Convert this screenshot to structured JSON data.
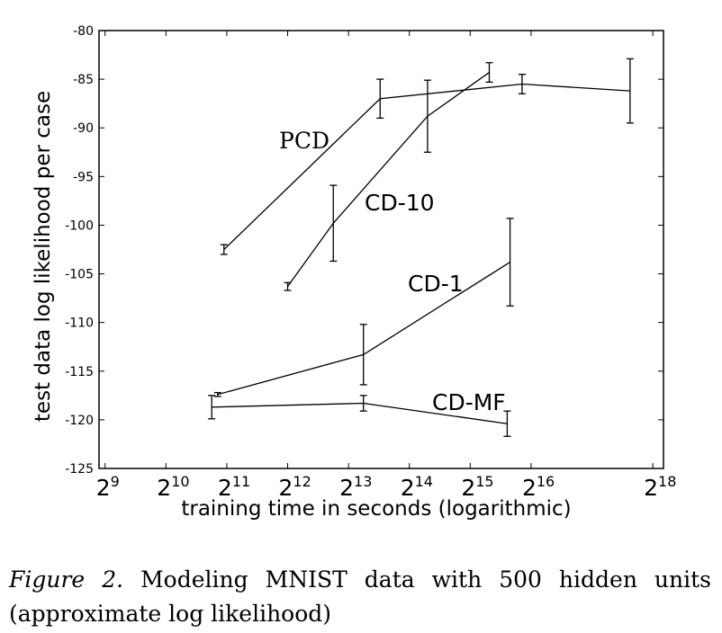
{
  "chart_data": {
    "type": "line",
    "xscale": "log2",
    "xlabel": "training time in seconds (logarithmic)",
    "ylabel": "test data log likelihood per case",
    "xlim": [
      478,
      296000
    ],
    "ylim": [
      -125,
      -80
    ],
    "xticks": [
      {
        "base": "2",
        "exp": "9",
        "value": 512
      },
      {
        "base": "2",
        "exp": "10",
        "value": 1024
      },
      {
        "base": "2",
        "exp": "11",
        "value": 2048
      },
      {
        "base": "2",
        "exp": "12",
        "value": 4096
      },
      {
        "base": "2",
        "exp": "13",
        "value": 8192
      },
      {
        "base": "2",
        "exp": "14",
        "value": 16384
      },
      {
        "base": "2",
        "exp": "15",
        "value": 32768
      },
      {
        "base": "2",
        "exp": "16",
        "value": 65536
      },
      {
        "base": "2",
        "exp": "18",
        "value": 262144
      }
    ],
    "yticks": [
      -80,
      -85,
      -90,
      -95,
      -100,
      -105,
      -110,
      -115,
      -120,
      -125
    ],
    "series": [
      {
        "name": "PCD",
        "points": [
          {
            "x": 1983,
            "y": -102.5,
            "err": 0.5
          },
          {
            "x": 11744,
            "y": -87.0,
            "err": 2.0
          },
          {
            "x": 59140,
            "y": -85.5,
            "err": 1.0
          },
          {
            "x": 202300,
            "y": -86.2,
            "err": 3.3
          }
        ]
      },
      {
        "name": "CD-10",
        "points": [
          {
            "x": 4096,
            "y": -106.3,
            "err": 0.4
          },
          {
            "x": 6890,
            "y": -99.8,
            "err": 3.9
          },
          {
            "x": 20150,
            "y": -88.8,
            "err": 3.7
          },
          {
            "x": 40700,
            "y": -84.3,
            "err": 1.0
          }
        ]
      },
      {
        "name": "CD-1",
        "points": [
          {
            "x": 1846,
            "y": -117.4,
            "err": 0.2
          },
          {
            "x": 9710,
            "y": -113.3,
            "err": 3.1
          },
          {
            "x": 51580,
            "y": -103.8,
            "err": 4.5
          }
        ]
      },
      {
        "name": "CD-MF",
        "points": [
          {
            "x": 1725,
            "y": -118.7,
            "err": 1.2
          },
          {
            "x": 9710,
            "y": -118.3,
            "err": 0.8
          },
          {
            "x": 49920,
            "y": -120.4,
            "err": 1.3
          }
        ]
      }
    ],
    "grid": false,
    "legend": "none"
  },
  "caption": {
    "label": "Figure 2.",
    "text": "Modeling MNIST data with 500 hidden units (approximate log likelihood)"
  }
}
